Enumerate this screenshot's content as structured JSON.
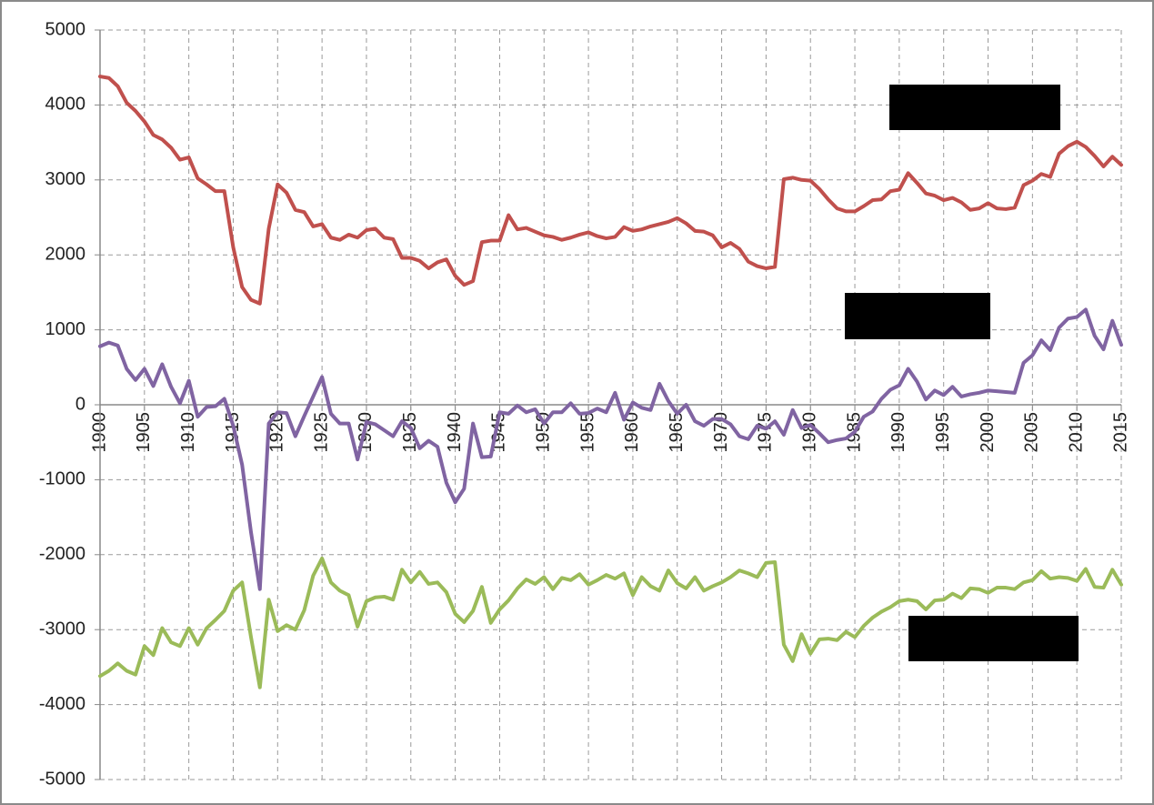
{
  "chart_data": {
    "type": "line",
    "x": [
      1900,
      1901,
      1902,
      1903,
      1904,
      1905,
      1906,
      1907,
      1908,
      1909,
      1910,
      1911,
      1912,
      1913,
      1914,
      1915,
      1916,
      1917,
      1918,
      1919,
      1920,
      1921,
      1922,
      1923,
      1924,
      1925,
      1926,
      1927,
      1928,
      1929,
      1930,
      1931,
      1932,
      1933,
      1934,
      1935,
      1936,
      1937,
      1938,
      1939,
      1940,
      1941,
      1942,
      1943,
      1944,
      1945,
      1946,
      1947,
      1948,
      1949,
      1950,
      1951,
      1952,
      1953,
      1954,
      1955,
      1956,
      1957,
      1958,
      1959,
      1960,
      1961,
      1962,
      1963,
      1964,
      1965,
      1966,
      1967,
      1968,
      1969,
      1970,
      1971,
      1972,
      1973,
      1974,
      1975,
      1976,
      1977,
      1978,
      1979,
      1980,
      1981,
      1982,
      1983,
      1984,
      1985,
      1986,
      1987,
      1988,
      1989,
      1990,
      1991,
      1992,
      1993,
      1994,
      1995,
      1996,
      1997,
      1998,
      1999,
      2000,
      2001,
      2002,
      2003,
      2004,
      2005,
      2006,
      2007,
      2008,
      2009,
      2010,
      2011,
      2012,
      2013,
      2014,
      2015
    ],
    "series": [
      {
        "color": "#c0504d",
        "values": [
          4380,
          4360,
          4250,
          4030,
          3920,
          3780,
          3600,
          3540,
          3430,
          3270,
          3300,
          3020,
          2940,
          2850,
          2850,
          2100,
          1570,
          1400,
          1350,
          2350,
          2940,
          2830,
          2600,
          2570,
          2380,
          2410,
          2230,
          2200,
          2270,
          2230,
          2330,
          2350,
          2230,
          2210,
          1960,
          1960,
          1920,
          1820,
          1900,
          1940,
          1720,
          1600,
          1650,
          2170,
          2190,
          2190,
          2530,
          2340,
          2360,
          2310,
          2260,
          2240,
          2200,
          2230,
          2270,
          2300,
          2250,
          2220,
          2240,
          2370,
          2320,
          2340,
          2380,
          2410,
          2440,
          2490,
          2420,
          2320,
          2310,
          2260,
          2100,
          2160,
          2080,
          1910,
          1850,
          1820,
          1840,
          3010,
          3030,
          3000,
          2990,
          2880,
          2740,
          2620,
          2580,
          2580,
          2650,
          2730,
          2740,
          2850,
          2870,
          3090,
          2960,
          2820,
          2790,
          2730,
          2760,
          2700,
          2600,
          2620,
          2690,
          2620,
          2610,
          2630,
          2930,
          2990,
          3080,
          3040,
          3350,
          3450,
          3510,
          3440,
          3320,
          3180,
          3310,
          3200
        ]
      },
      {
        "color": "#8064a2",
        "values": [
          780,
          830,
          790,
          480,
          330,
          480,
          250,
          540,
          240,
          20,
          320,
          -160,
          -30,
          -20,
          80,
          -280,
          -800,
          -1700,
          -2460,
          -250,
          -100,
          -110,
          -420,
          -150,
          110,
          370,
          -120,
          -250,
          -250,
          -730,
          -230,
          -260,
          -340,
          -420,
          -220,
          -310,
          -580,
          -480,
          -560,
          -1040,
          -1300,
          -1120,
          -250,
          -700,
          -690,
          -100,
          -120,
          -10,
          -100,
          -60,
          -250,
          -100,
          -100,
          20,
          -120,
          -110,
          -50,
          -100,
          160,
          -200,
          30,
          -40,
          -70,
          280,
          50,
          -120,
          0,
          -220,
          -280,
          -190,
          -190,
          -260,
          -420,
          -460,
          -280,
          -320,
          -220,
          -400,
          -70,
          -310,
          -270,
          -380,
          -500,
          -470,
          -450,
          -360,
          -160,
          -90,
          80,
          200,
          260,
          480,
          310,
          70,
          190,
          130,
          240,
          110,
          140,
          160,
          190,
          180,
          170,
          160,
          560,
          660,
          860,
          730,
          1030,
          1150,
          1170,
          1270,
          920,
          740,
          1120,
          800
        ]
      },
      {
        "color": "#9bbb59",
        "values": [
          -3620,
          -3550,
          -3450,
          -3550,
          -3600,
          -3220,
          -3340,
          -2980,
          -3170,
          -3220,
          -2980,
          -3200,
          -2980,
          -2870,
          -2750,
          -2480,
          -2370,
          -3100,
          -3770,
          -2600,
          -3020,
          -2940,
          -3000,
          -2740,
          -2280,
          -2050,
          -2370,
          -2480,
          -2540,
          -2960,
          -2620,
          -2570,
          -2560,
          -2600,
          -2200,
          -2370,
          -2230,
          -2390,
          -2370,
          -2500,
          -2790,
          -2900,
          -2750,
          -2430,
          -2910,
          -2730,
          -2610,
          -2450,
          -2330,
          -2390,
          -2300,
          -2460,
          -2310,
          -2340,
          -2260,
          -2400,
          -2340,
          -2270,
          -2320,
          -2250,
          -2540,
          -2300,
          -2420,
          -2480,
          -2210,
          -2380,
          -2450,
          -2300,
          -2480,
          -2420,
          -2370,
          -2300,
          -2210,
          -2250,
          -2300,
          -2110,
          -2100,
          -3200,
          -3420,
          -3060,
          -3320,
          -3130,
          -3120,
          -3140,
          -3030,
          -3100,
          -2950,
          -2840,
          -2760,
          -2700,
          -2620,
          -2600,
          -2620,
          -2730,
          -2610,
          -2600,
          -2520,
          -2580,
          -2450,
          -2460,
          -2510,
          -2440,
          -2440,
          -2460,
          -2370,
          -2340,
          -2220,
          -2320,
          -2300,
          -2310,
          -2350,
          -2190,
          -2430,
          -2440,
          -2200,
          -2400
        ]
      }
    ],
    "xlim": [
      1900,
      2015
    ],
    "xticks": [
      1900,
      1905,
      1910,
      1915,
      1920,
      1925,
      1930,
      1935,
      1940,
      1945,
      1950,
      1955,
      1960,
      1965,
      1970,
      1975,
      1980,
      1985,
      1990,
      1995,
      2000,
      2005,
      2010,
      2015
    ],
    "ylim": [
      -5000,
      5000
    ],
    "yticks": [
      -5000,
      -4000,
      -3000,
      -2000,
      -1000,
      0,
      1000,
      2000,
      3000,
      4000,
      5000
    ],
    "grid": true
  }
}
